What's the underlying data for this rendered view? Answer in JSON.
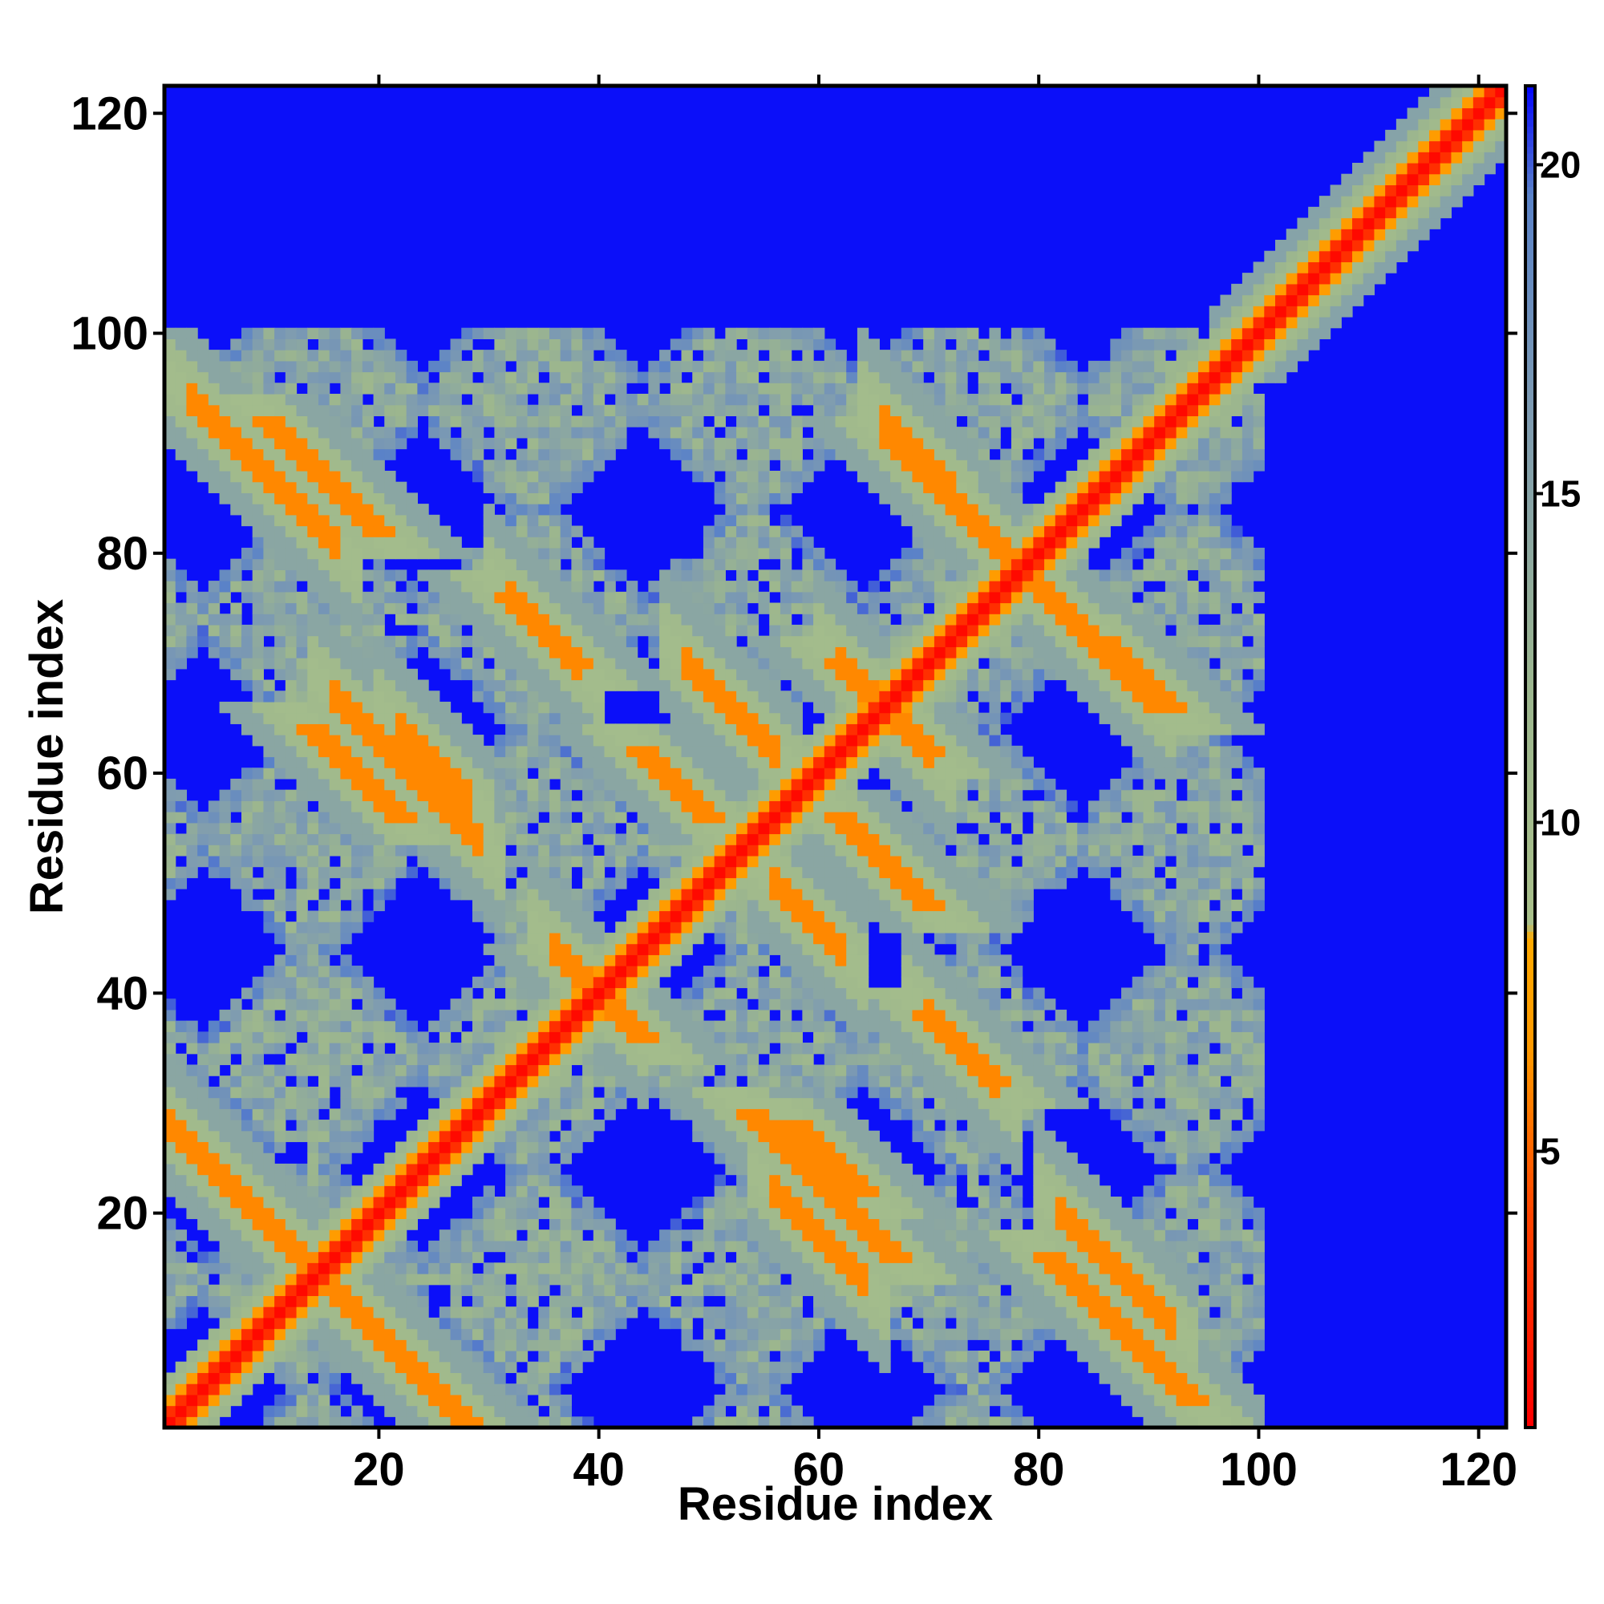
{
  "chart_data": {
    "type": "heatmap",
    "title": "",
    "xlabel": "Residue index",
    "ylabel": "Residue index",
    "xlim": [
      1,
      122
    ],
    "ylim": [
      1,
      122
    ],
    "x_ticks": [
      20,
      40,
      60,
      80,
      100,
      120
    ],
    "y_ticks": [
      20,
      40,
      60,
      80,
      100,
      120
    ],
    "x_tick_labels": [
      "20",
      "40",
      "60",
      "80",
      "100",
      "120"
    ],
    "y_tick_labels": [
      "20",
      "40",
      "60",
      "80",
      "100",
      "120"
    ],
    "grid": false,
    "legend": "colorbar right",
    "colorbar": {
      "range": [
        0.8,
        21.2
      ],
      "ticks": [
        5,
        10,
        15,
        20
      ],
      "tick_labels": [
        "5",
        "10",
        "15",
        "20"
      ],
      "stops": [
        {
          "value": 0.8,
          "color": "#ff0000"
        },
        {
          "value": 4.0,
          "color": "#ff4500"
        },
        {
          "value": 6.5,
          "color": "#ff9900"
        },
        {
          "value": 8.2,
          "color": "#ffaa00"
        },
        {
          "value": 8.4,
          "color": "#a9c08a"
        },
        {
          "value": 12.0,
          "color": "#9cb68e"
        },
        {
          "value": 16.0,
          "color": "#7f9cb0"
        },
        {
          "value": 19.5,
          "color": "#5a82c8"
        },
        {
          "value": 21.2,
          "color": "#0000ff"
        }
      ]
    },
    "matrix_size": 122,
    "features": {
      "main_diagonal": "i = j, distance ~1",
      "anti_diagonal_bands": [
        {
          "i_range": [
            1,
            28
          ],
          "j_center_sum": 29
        },
        {
          "i_range": [
            3,
            16
          ],
          "j_center_sum": 97
        },
        {
          "i_range": [
            16,
            29
          ],
          "j_center_sum": 83
        },
        {
          "i_range": [
            32,
            38
          ],
          "j_center_sum": 108
        },
        {
          "i_range": [
            22,
            28
          ],
          "j_center_sum": 86
        },
        {
          "i_range": [
            36,
            42
          ],
          "j_center_sum": 80
        },
        {
          "i_range": [
            48,
            56
          ],
          "j_center_sum": 118
        },
        {
          "i_range": [
            56,
            62
          ],
          "j_center_sum": 106
        },
        {
          "i_range": [
            56,
            64
          ],
          "j_center_sum": 78
        },
        {
          "i_range": [
            66,
            72
          ],
          "j_center_sum": 158
        },
        {
          "i_range": [
            70,
            76
          ],
          "j_center_sum": 108
        },
        {
          "i_range": [
            78,
            90
          ],
          "j_center_sum": 157
        },
        {
          "i_range": [
            82,
            92
          ],
          "j_center_sum": 102
        },
        {
          "i_range": [
            62,
            70
          ],
          "j_center_sum": 132
        }
      ],
      "background_distance": 21
    }
  }
}
